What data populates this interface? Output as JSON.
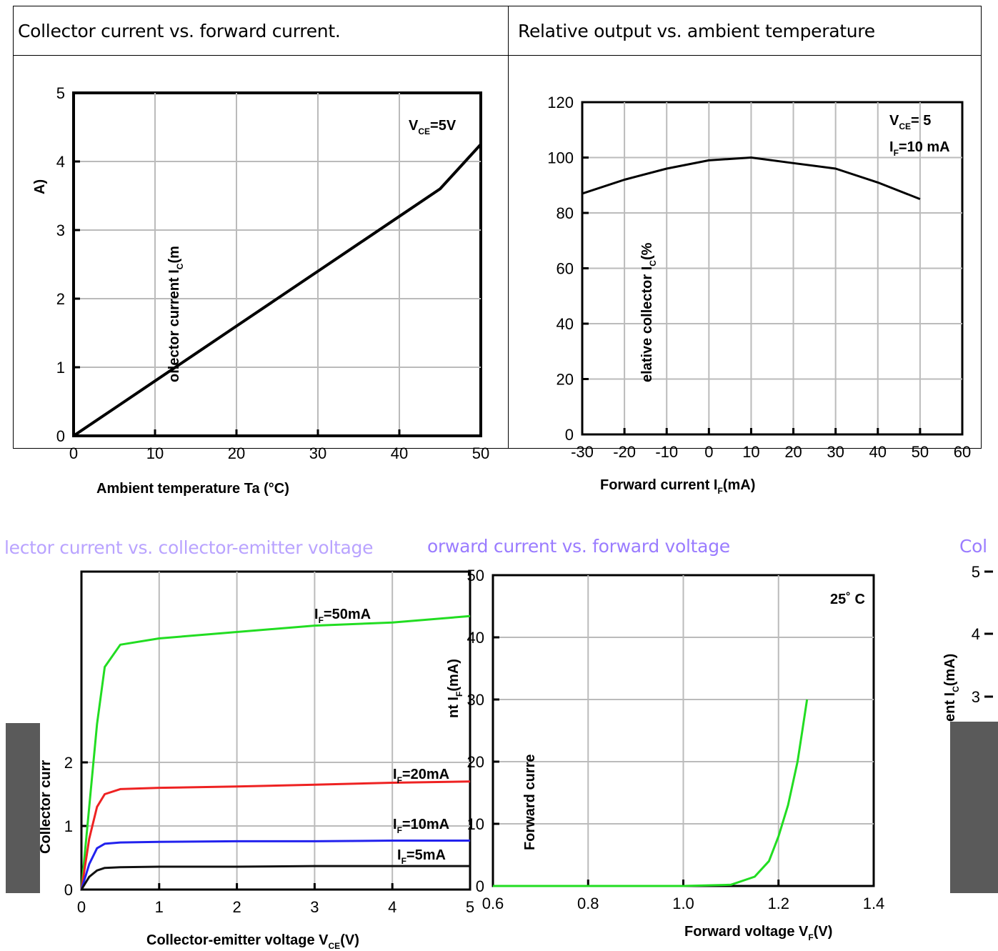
{
  "table": {
    "title_left": "Collector current vs. forward current.",
    "title_right": "Relative output vs. ambient temperature"
  },
  "sections": {
    "bottom_left_title": "lector current vs. collector-emitter voltage",
    "bottom_mid_title": "orward current vs. forward voltage",
    "bottom_right_title": "Col"
  },
  "chart_data": [
    {
      "type": "line",
      "title": "Collector current vs. forward current.",
      "ylabel": "Collector current I_C(mA)",
      "xlabel": "Forward current I_F(mA)",
      "ylim": [
        0,
        5
      ],
      "yticks": [
        "0",
        "1",
        "2",
        "3",
        "4",
        "5"
      ],
      "xticks": [
        "0",
        "10",
        "20",
        "30",
        "40",
        "50"
      ],
      "xlim": [
        0,
        50
      ],
      "grid": true,
      "annotation": "V_CE=5V",
      "series": [
        {
          "x": [
            0,
            1,
            5,
            10,
            15,
            20,
            25,
            30,
            35,
            40,
            45,
            50
          ],
          "values": [
            0,
            0.08,
            0.4,
            0.8,
            1.2,
            1.6,
            2.0,
            2.4,
            2.8,
            3.2,
            3.6,
            4.25
          ]
        }
      ]
    },
    {
      "type": "line",
      "title": "Relative output vs. ambient temperature",
      "ylabel": "Relative collector I_C(%)",
      "xlabel": "Ambient temperature Ta (°C)",
      "ylim": [
        0,
        120
      ],
      "yticks": [
        "0",
        "20",
        "40",
        "60",
        "80",
        "100",
        "120"
      ],
      "xticks": [
        "-30",
        "-20",
        "-10",
        "0",
        "10",
        "20",
        "30",
        "40",
        "50",
        "60"
      ],
      "xlim": [
        -30,
        60
      ],
      "grid": true,
      "annotation_vce": "V_CE= 5",
      "annotation_if": "I_F=10 mA",
      "series": [
        {
          "x": [
            -30,
            -20,
            -10,
            0,
            10,
            20,
            30,
            40,
            50
          ],
          "values": [
            87,
            92,
            96,
            99,
            100,
            98,
            96,
            91,
            85
          ]
        }
      ]
    },
    {
      "type": "line",
      "title": "Collector current vs. collector-emitter voltage",
      "ylabel": "Collector current",
      "xlabel": "Collector-emitter voltage V_CE (V)",
      "ylim": [
        0,
        5
      ],
      "yticks": [
        "0",
        "1",
        "2"
      ],
      "xticks": [
        "0",
        "1",
        "2",
        "3",
        "4",
        "5"
      ],
      "xlim": [
        0,
        5
      ],
      "grid": true,
      "series": [
        {
          "name": "I_F=50mA",
          "color": "#22dd22",
          "x": [
            0,
            0.1,
            0.2,
            0.3,
            0.5,
            1,
            2,
            3,
            4,
            5
          ],
          "values": [
            0,
            1.3,
            2.6,
            3.5,
            3.85,
            3.95,
            4.05,
            4.15,
            4.2,
            4.3
          ]
        },
        {
          "name": "I_F=20mA",
          "color": "#ee2222",
          "x": [
            0,
            0.1,
            0.2,
            0.3,
            0.5,
            1,
            2,
            3,
            4,
            5
          ],
          "values": [
            0,
            0.8,
            1.3,
            1.5,
            1.58,
            1.6,
            1.62,
            1.65,
            1.68,
            1.7
          ]
        },
        {
          "name": "I_F=10mA",
          "color": "#2222ee",
          "x": [
            0,
            0.1,
            0.2,
            0.3,
            0.5,
            1,
            2,
            3,
            4,
            5
          ],
          "values": [
            0,
            0.4,
            0.65,
            0.72,
            0.74,
            0.75,
            0.76,
            0.76,
            0.77,
            0.77
          ]
        },
        {
          "name": "I_F=5mA",
          "color": "#111111",
          "x": [
            0,
            0.1,
            0.2,
            0.3,
            0.5,
            1,
            2,
            3,
            4,
            5
          ],
          "values": [
            0,
            0.2,
            0.3,
            0.34,
            0.35,
            0.36,
            0.36,
            0.37,
            0.37,
            0.37
          ]
        }
      ]
    },
    {
      "type": "line",
      "title": "Forward current vs. forward voltage",
      "ylabel": "Forward current I_F(mA)",
      "xlabel": "Forward voltage V_F (V)",
      "ylim": [
        0,
        50
      ],
      "yticks": [
        "0",
        "10",
        "20",
        "30",
        "40",
        "50"
      ],
      "xticks": [
        "0.6",
        "0.8",
        "1.0",
        "1.2",
        "1.4"
      ],
      "xlim": [
        0.6,
        1.4
      ],
      "grid": true,
      "annotation": "25˚ C",
      "series": [
        {
          "color": "#22dd22",
          "x": [
            0.6,
            1.0,
            1.1,
            1.15,
            1.18,
            1.2,
            1.22,
            1.24,
            1.25,
            1.26
          ],
          "values": [
            0,
            0,
            0.2,
            1.5,
            4,
            8,
            13,
            20,
            25,
            30
          ]
        }
      ]
    }
  ],
  "labels": {
    "c1_annot": "V",
    "c1_annot_sub": "CE",
    "c1_annot_tail": "=5V",
    "c1_ylabel": "ollector current I",
    "c1_ylabel_sub": "C",
    "c1_ylabel_tail": "(m",
    "c1_ylabel_left": "A)",
    "c1_xlabel": "Forward current I",
    "c1_xlabel_sub": "F",
    "c1_xlabel_tail": "(mA)",
    "c2_annot_v": "V",
    "c2_annot_v_sub": "CE",
    "c2_annot_v_tail": "= 5",
    "c2_annot_i": "I",
    "c2_annot_i_sub": "F",
    "c2_annot_i_tail": "=10 mA",
    "c2_ylabel": "elative collector I",
    "c2_ylabel_sub": "C",
    "c2_ylabel_tail": "(%",
    "c2_xlabel": "Ambient temperature Ta (°C)",
    "c3_ylabel": "Collector curr",
    "c3_xlabel": "Collector-emitter voltage V",
    "c3_xlabel_sub": "CE",
    "c3_xlabel_tail": "(V)",
    "c3_s1": "I",
    "c3_s1_sub": "F",
    "c3_s1_tail": "=50mA",
    "c3_s2": "I",
    "c3_s2_sub": "F",
    "c3_s2_tail": "=20mA",
    "c3_s3": "I",
    "c3_s3_sub": "F",
    "c3_s3_tail": "=10mA",
    "c3_s4": "I",
    "c3_s4_sub": "F",
    "c3_s4_tail": "=5mA",
    "c4_ylabel_top": "nt I",
    "c4_ylabel_top_sub": "F",
    "c4_ylabel_top_tail": "(mA)",
    "c4_ylabel_bottom": "Forward curre",
    "c4_xlabel": "Forward voltage V",
    "c4_xlabel_sub": "F",
    "c4_xlabel_tail": "(V)",
    "c4_annot": "25˚ C",
    "c5_ylabel": "ent I",
    "c5_ylabel_sub": "C",
    "c5_ylabel_tail": "(mA)",
    "c5_yticks": [
      "3",
      "4",
      "5"
    ]
  }
}
